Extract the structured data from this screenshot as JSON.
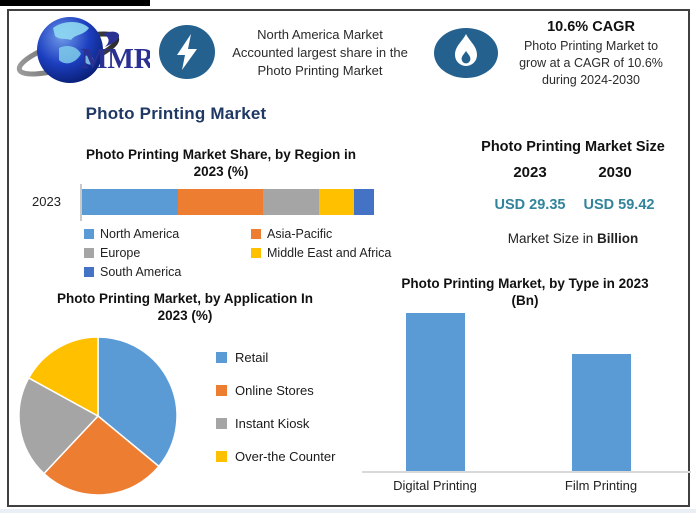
{
  "colors": {
    "accent_navy": "#1F3864",
    "value_teal": "#31849B",
    "icon_blue": "#24618E",
    "series_blue": "#5B9BD5",
    "series_orange": "#ED7D31",
    "series_gray": "#A5A5A5",
    "series_yellow": "#FFC000",
    "series_darkblue": "#4472C4"
  },
  "header": {
    "logo_text": "MMR",
    "highlight": {
      "lines": [
        "North America Market",
        "Accounted largest share in the",
        "Photo Printing Market"
      ]
    },
    "cagr": {
      "title": "10.6% CAGR",
      "lines": [
        "Photo Printing Market to",
        "grow at a CAGR of 10.6%",
        "during 2024-2030"
      ]
    }
  },
  "main_title": "Photo Printing Market",
  "market_size": {
    "title": "Photo Printing Market Size",
    "columns": [
      {
        "year": "2023",
        "value": "USD 29.35"
      },
      {
        "year": "2030",
        "value": "USD 59.42"
      }
    ],
    "note_prefix": "Market Size in ",
    "note_bold": "Billion"
  },
  "chart_data": [
    {
      "id": "region-share",
      "type": "bar",
      "subtype": "horizontal-stacked",
      "title": "Photo Printing Market Share, by Region in 2023 (%)",
      "title_lines": [
        "Photo Printing Market Share, by Region in",
        "2023 (%)"
      ],
      "categories": [
        "2023"
      ],
      "series": [
        {
          "name": "North America",
          "value": 33,
          "color": "#5B9BD5"
        },
        {
          "name": "Asia-Pacific",
          "value": 29,
          "color": "#ED7D31"
        },
        {
          "name": "Europe",
          "value": 19,
          "color": "#A5A5A5"
        },
        {
          "name": "Middle East and Africa",
          "value": 12,
          "color": "#FFC000"
        },
        {
          "name": "South America",
          "value": 7,
          "color": "#4472C4"
        }
      ],
      "unit": "%",
      "legend_position": "bottom",
      "grid": false
    },
    {
      "id": "application-share",
      "type": "pie",
      "title": "Photo Printing Market, by Application In 2023 (%)",
      "title_lines": [
        "Photo Printing Market, by Application In",
        "2023 (%)"
      ],
      "slices": [
        {
          "name": "Retail",
          "value": 36,
          "color": "#5B9BD5"
        },
        {
          "name": "Online Stores",
          "value": 26,
          "color": "#ED7D31"
        },
        {
          "name": "Instant Kiosk",
          "value": 21,
          "color": "#A5A5A5"
        },
        {
          "name": "Over-the Counter",
          "value": 17,
          "color": "#FFC000"
        }
      ],
      "start_angle_deg": 0,
      "unit": "%",
      "legend_position": "right"
    },
    {
      "id": "type-2023",
      "type": "bar",
      "title": "Photo Printing Market, by Type in 2023 (Bn)",
      "title_lines": [
        "Photo Printing Market, by Type in 2023",
        "(Bn)"
      ],
      "categories": [
        "Digital Printing",
        "Film Printing"
      ],
      "values": [
        16.9,
        12.5
      ],
      "unit": "Bn",
      "bar_color": "#5B9BD5",
      "ylim": [
        0,
        17.1
      ],
      "grid": false
    }
  ]
}
